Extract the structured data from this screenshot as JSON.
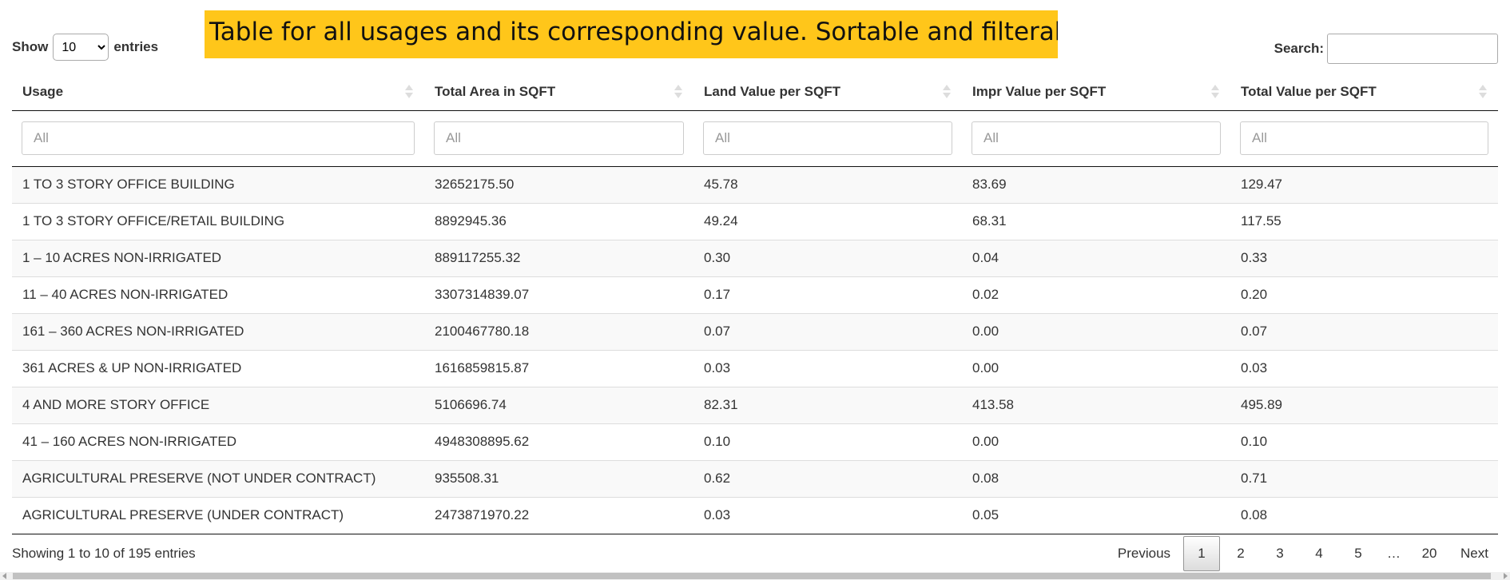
{
  "annotation": "Table for all usages and its corresponding value. Sortable and filterable",
  "length": {
    "show_label": "Show",
    "selected": "10",
    "entries_label": "entries"
  },
  "search": {
    "label": "Search:",
    "value": ""
  },
  "table": {
    "columns": [
      "Usage",
      "Total Area in SQFT",
      "Land Value per SQFT",
      "Impr Value per SQFT",
      "Total Value per SQFT"
    ],
    "filter_placeholder": "All",
    "rows": [
      [
        "1 TO 3 STORY OFFICE BUILDING",
        "32652175.50",
        "45.78",
        "83.69",
        "129.47"
      ],
      [
        "1 TO 3 STORY OFFICE/RETAIL BUILDING",
        "8892945.36",
        "49.24",
        "68.31",
        "117.55"
      ],
      [
        "1 – 10 ACRES NON-IRRIGATED",
        "889117255.32",
        "0.30",
        "0.04",
        "0.33"
      ],
      [
        "11 – 40 ACRES NON-IRRIGATED",
        "3307314839.07",
        "0.17",
        "0.02",
        "0.20"
      ],
      [
        "161 – 360 ACRES NON-IRRIGATED",
        "2100467780.18",
        "0.07",
        "0.00",
        "0.07"
      ],
      [
        "361 ACRES & UP NON-IRRIGATED",
        "1616859815.87",
        "0.03",
        "0.00",
        "0.03"
      ],
      [
        "4 AND MORE STORY OFFICE",
        "5106696.74",
        "82.31",
        "413.58",
        "495.89"
      ],
      [
        "41 – 160 ACRES NON-IRRIGATED",
        "4948308895.62",
        "0.10",
        "0.00",
        "0.10"
      ],
      [
        "AGRICULTURAL PRESERVE (NOT UNDER CONTRACT)",
        "935508.31",
        "0.62",
        "0.08",
        "0.71"
      ],
      [
        "AGRICULTURAL PRESERVE (UNDER CONTRACT)",
        "2473871970.22",
        "0.03",
        "0.05",
        "0.08"
      ]
    ]
  },
  "info": "Showing 1 to 10 of 195 entries",
  "pagination": {
    "previous": "Previous",
    "pages": [
      "1",
      "2",
      "3",
      "4",
      "5"
    ],
    "ellipsis": "…",
    "last": "20",
    "next": "Next",
    "current": "1"
  }
}
